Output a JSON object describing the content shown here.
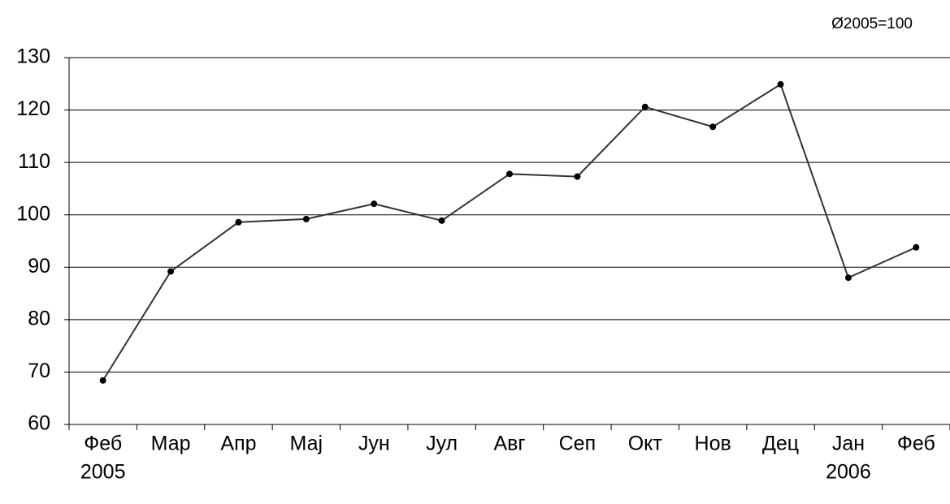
{
  "chart_data": {
    "type": "line",
    "subtitle": "Ø2005=100",
    "categories": [
      "Феб",
      "Мар",
      "Апр",
      "Мај",
      "Јун",
      "Јул",
      "Авг",
      "Сеп",
      "Окт",
      "Нов",
      "Дец",
      "Јан",
      "Феб"
    ],
    "annotations": [
      {
        "text": "2005",
        "index": 0
      },
      {
        "text": "2006",
        "index": 11
      }
    ],
    "series": [
      {
        "color": "#333333",
        "values": [
          68.4,
          89.2,
          98.6,
          99.2,
          102.1,
          98.9,
          107.8,
          107.3,
          120.6,
          116.8,
          124.9,
          88.0,
          93.8
        ]
      }
    ],
    "ylim": [
      60,
      130
    ],
    "yticks": [
      60,
      70,
      80,
      90,
      100,
      110,
      120,
      130
    ],
    "grid": true
  }
}
